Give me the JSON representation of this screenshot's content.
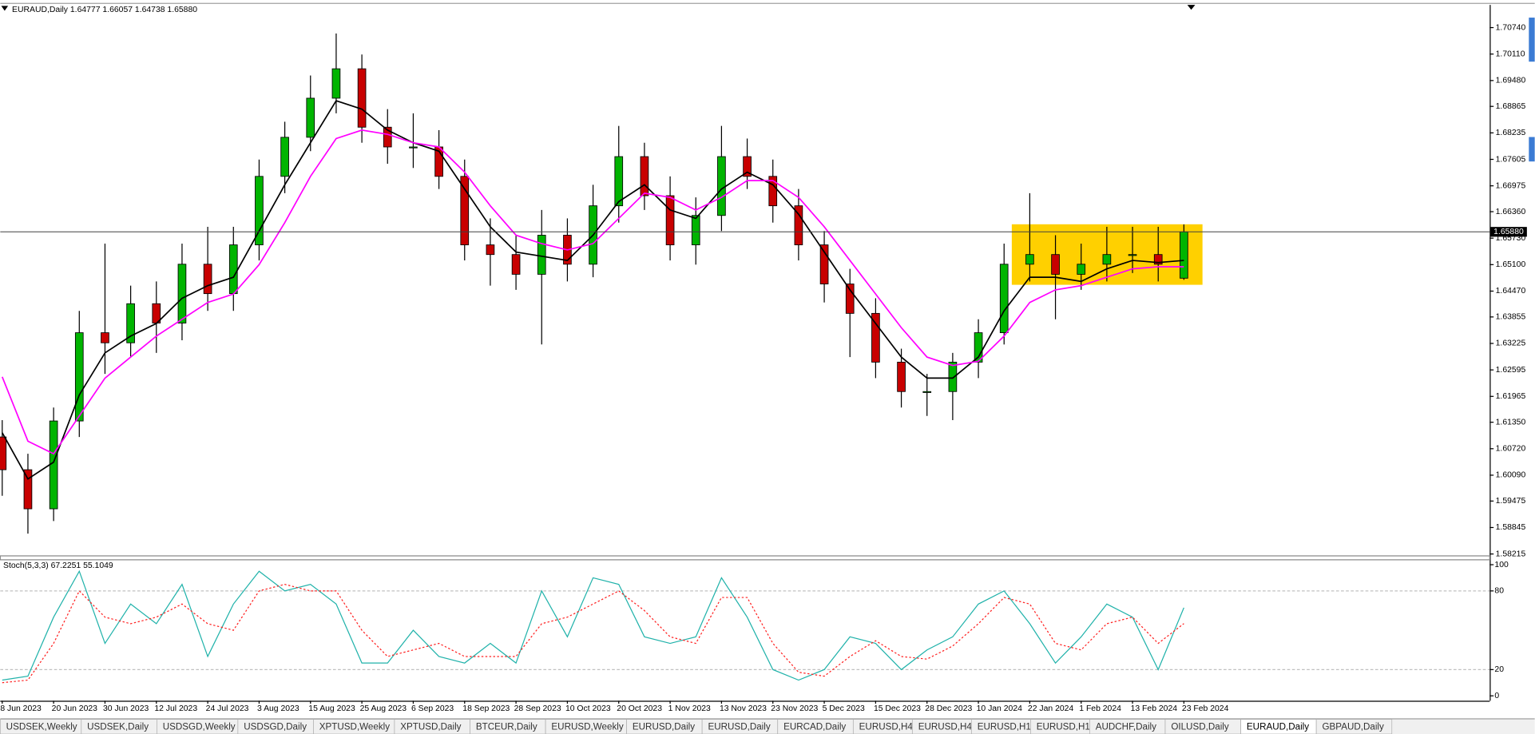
{
  "chart_data": [
    {
      "type": "candlestick",
      "title": "EURAUD,Daily  1.64777 1.66057 1.64738 1.65880",
      "categories": [
        "8 Jun 2023",
        null,
        "20 Jun 2023",
        null,
        "30 Jun 2023",
        null,
        "12 Jul 2023",
        null,
        "24 Jul 2023",
        null,
        "3 Aug 2023",
        null,
        "15 Aug 2023",
        null,
        "25 Aug 2023",
        null,
        "6 Sep 2023",
        null,
        "18 Sep 2023",
        null,
        "28 Sep 2023",
        null,
        "10 Oct 2023",
        null,
        "20 Oct 2023",
        null,
        "1 Nov 2023",
        null,
        "13 Nov 2023",
        null,
        "23 Nov 2023",
        null,
        "5 Dec 2023",
        null,
        "15 Dec 2023",
        null,
        "28 Dec 2023",
        null,
        "10 Jan 2024",
        null,
        "22 Jan 2024",
        null,
        "1 Feb 2024",
        null,
        "13 Feb 2024",
        null,
        "23 Feb 2024"
      ],
      "open": [
        1.61,
        1.6022,
        1.5929,
        1.6138,
        1.6348,
        1.6324,
        1.6417,
        1.6371,
        1.6511,
        1.6441,
        1.6557,
        1.672,
        1.6813,
        1.6906,
        1.6976,
        1.6837,
        1.679,
        1.679,
        1.672,
        1.6557,
        1.6534,
        1.6487,
        1.658,
        1.6511,
        1.665,
        1.6767,
        1.6674,
        1.6557,
        1.6627,
        1.6767,
        1.672,
        1.665,
        1.6557,
        1.6464,
        1.6394,
        1.6278,
        1.6208,
        1.6208,
        1.6278,
        1.6348,
        1.6511,
        1.6534,
        1.6487,
        1.6511,
        1.6534,
        1.6534,
        1.64777
      ],
      "high": [
        1.614,
        1.606,
        1.617,
        1.64,
        1.656,
        1.646,
        1.647,
        1.656,
        1.66,
        1.66,
        1.676,
        1.685,
        1.696,
        1.706,
        1.701,
        1.688,
        1.687,
        1.683,
        1.676,
        1.662,
        1.658,
        1.664,
        1.662,
        1.67,
        1.684,
        1.68,
        1.672,
        1.667,
        1.684,
        1.681,
        1.676,
        1.669,
        1.659,
        1.65,
        1.643,
        1.631,
        1.625,
        1.63,
        1.638,
        1.656,
        1.668,
        1.658,
        1.656,
        1.66,
        1.66,
        1.66,
        1.66057
      ],
      "low": [
        1.596,
        1.587,
        1.59,
        1.61,
        1.625,
        1.629,
        1.63,
        1.633,
        1.64,
        1.64,
        1.652,
        1.668,
        1.678,
        1.687,
        1.68,
        1.675,
        1.674,
        1.669,
        1.652,
        1.646,
        1.645,
        1.632,
        1.647,
        1.648,
        1.661,
        1.664,
        1.652,
        1.651,
        1.659,
        1.669,
        1.661,
        1.652,
        1.642,
        1.629,
        1.624,
        1.617,
        1.615,
        1.614,
        1.624,
        1.632,
        1.647,
        1.638,
        1.645,
        1.647,
        1.649,
        1.647,
        1.64738
      ],
      "close": [
        1.6022,
        1.5929,
        1.6138,
        1.6348,
        1.6324,
        1.6417,
        1.6371,
        1.6511,
        1.6441,
        1.6557,
        1.672,
        1.6813,
        1.6906,
        1.6976,
        1.6837,
        1.679,
        1.679,
        1.672,
        1.6557,
        1.6534,
        1.6487,
        1.658,
        1.6511,
        1.665,
        1.6767,
        1.6674,
        1.6557,
        1.6627,
        1.6767,
        1.672,
        1.665,
        1.6557,
        1.6464,
        1.6394,
        1.6278,
        1.6208,
        1.6208,
        1.6278,
        1.6348,
        1.6511,
        1.6534,
        1.6487,
        1.6511,
        1.6534,
        1.6534,
        1.6511,
        1.6588
      ],
      "up_color": "#00b400",
      "down_color": "#c80000",
      "lines": [
        {
          "color": "#000000",
          "values": [
            1.611,
            1.6,
            1.604,
            1.62,
            1.63,
            1.634,
            1.637,
            1.643,
            1.646,
            1.648,
            1.659,
            1.67,
            1.68,
            1.69,
            1.688,
            1.683,
            1.68,
            1.678,
            1.669,
            1.66,
            1.654,
            1.653,
            1.652,
            1.658,
            1.666,
            1.67,
            1.664,
            1.662,
            1.669,
            1.673,
            1.67,
            1.663,
            1.654,
            1.645,
            1.637,
            1.629,
            1.624,
            1.624,
            1.629,
            1.64,
            1.648,
            1.648,
            1.647,
            1.65,
            1.652,
            1.6515,
            1.652
          ]
        },
        {
          "color": "#ff00ff",
          "values": [
            1.6243,
            1.609,
            1.606,
            1.615,
            1.624,
            1.629,
            1.634,
            1.638,
            1.642,
            1.644,
            1.651,
            1.661,
            1.672,
            1.681,
            1.683,
            1.682,
            1.68,
            1.679,
            1.673,
            1.665,
            1.658,
            1.656,
            1.6545,
            1.656,
            1.662,
            1.668,
            1.667,
            1.664,
            1.667,
            1.671,
            1.671,
            1.667,
            1.66,
            1.652,
            1.644,
            1.636,
            1.629,
            1.627,
            1.628,
            1.634,
            1.642,
            1.645,
            1.646,
            1.648,
            1.65,
            1.6505,
            1.6505
          ]
        }
      ],
      "price_line": {
        "value": 1.6588,
        "label": "1.65880"
      },
      "zone": {
        "color": "#ffd000",
        "top": 1.6606,
        "bottom": 1.6462
      },
      "ylim": [
        1.5817,
        1.7128
      ],
      "yticks": [
        {
          "value": 1.7074,
          "label": "1.70740"
        },
        {
          "value": 1.7011,
          "label": "1.70110"
        },
        {
          "value": 1.6948,
          "label": "1.69480"
        },
        {
          "value": 1.68865,
          "label": "1.68865"
        },
        {
          "value": 1.68235,
          "label": "1.68235"
        },
        {
          "value": 1.67605,
          "label": "1.67605"
        },
        {
          "value": 1.66975,
          "label": "1.66975"
        },
        {
          "value": 1.6636,
          "label": "1.66360"
        },
        {
          "value": 1.6573,
          "label": "1.65730"
        },
        {
          "value": 1.651,
          "label": "1.65100"
        },
        {
          "value": 1.6447,
          "label": "1.64470"
        },
        {
          "value": 1.63855,
          "label": "1.63855"
        },
        {
          "value": 1.63225,
          "label": "1.63225"
        },
        {
          "value": 1.62595,
          "label": "1.62595"
        },
        {
          "value": 1.61965,
          "label": "1.61965"
        },
        {
          "value": 1.6135,
          "label": "1.61350"
        },
        {
          "value": 1.6072,
          "label": "1.60720"
        },
        {
          "value": 1.6009,
          "label": "1.60090"
        },
        {
          "value": 1.59475,
          "label": "1.59475"
        },
        {
          "value": 1.58845,
          "label": "1.58845"
        },
        {
          "value": 1.58215,
          "label": "1.58215"
        }
      ]
    },
    {
      "type": "line",
      "title": "Stoch(5,3,3) 67.2251 55.1049",
      "lines": [
        {
          "color": "#20b2aa",
          "dash": false,
          "values": [
            12,
            15,
            60,
            95,
            40,
            70,
            55,
            85,
            30,
            70,
            95,
            80,
            85,
            70,
            25,
            25,
            50,
            30,
            25,
            40,
            25,
            80,
            45,
            90,
            85,
            45,
            40,
            45,
            90,
            60,
            20,
            12,
            20,
            45,
            40,
            20,
            35,
            45,
            70,
            80,
            55,
            25,
            45,
            70,
            60,
            20,
            67.2251
          ]
        },
        {
          "color": "#ff2020",
          "dash": true,
          "values": [
            10,
            12,
            40,
            80,
            60,
            55,
            60,
            70,
            55,
            50,
            80,
            85,
            80,
            80,
            50,
            30,
            35,
            40,
            30,
            30,
            30,
            55,
            60,
            70,
            80,
            65,
            45,
            40,
            75,
            75,
            40,
            18,
            15,
            30,
            42,
            30,
            28,
            38,
            55,
            75,
            70,
            40,
            35,
            55,
            60,
            40,
            55.1049
          ]
        }
      ],
      "levels": [
        20,
        80
      ],
      "ylim": [
        0,
        100
      ],
      "yticks": [
        0,
        20,
        80,
        100
      ]
    }
  ],
  "tabs": [
    "USDSEK,Weekly",
    "USDSEK,Daily",
    "USDSGD,Weekly",
    "USDSGD,Daily",
    "XPTUSD,Weekly",
    "XPTUSD,Daily",
    "BTCEUR,Daily",
    "EURUSD,Weekly",
    "EURUSD,Daily",
    "EURUSD,Daily",
    "EURCAD,Daily",
    "EURUSD,H4",
    "EURUSD,H4",
    "EURUSD,H1",
    "EURUSD,H1",
    "AUDCHF,Daily",
    "OILUSD,Daily",
    "EURAUD,Daily",
    "GBPAUD,Daily"
  ],
  "active_tab": 17
}
